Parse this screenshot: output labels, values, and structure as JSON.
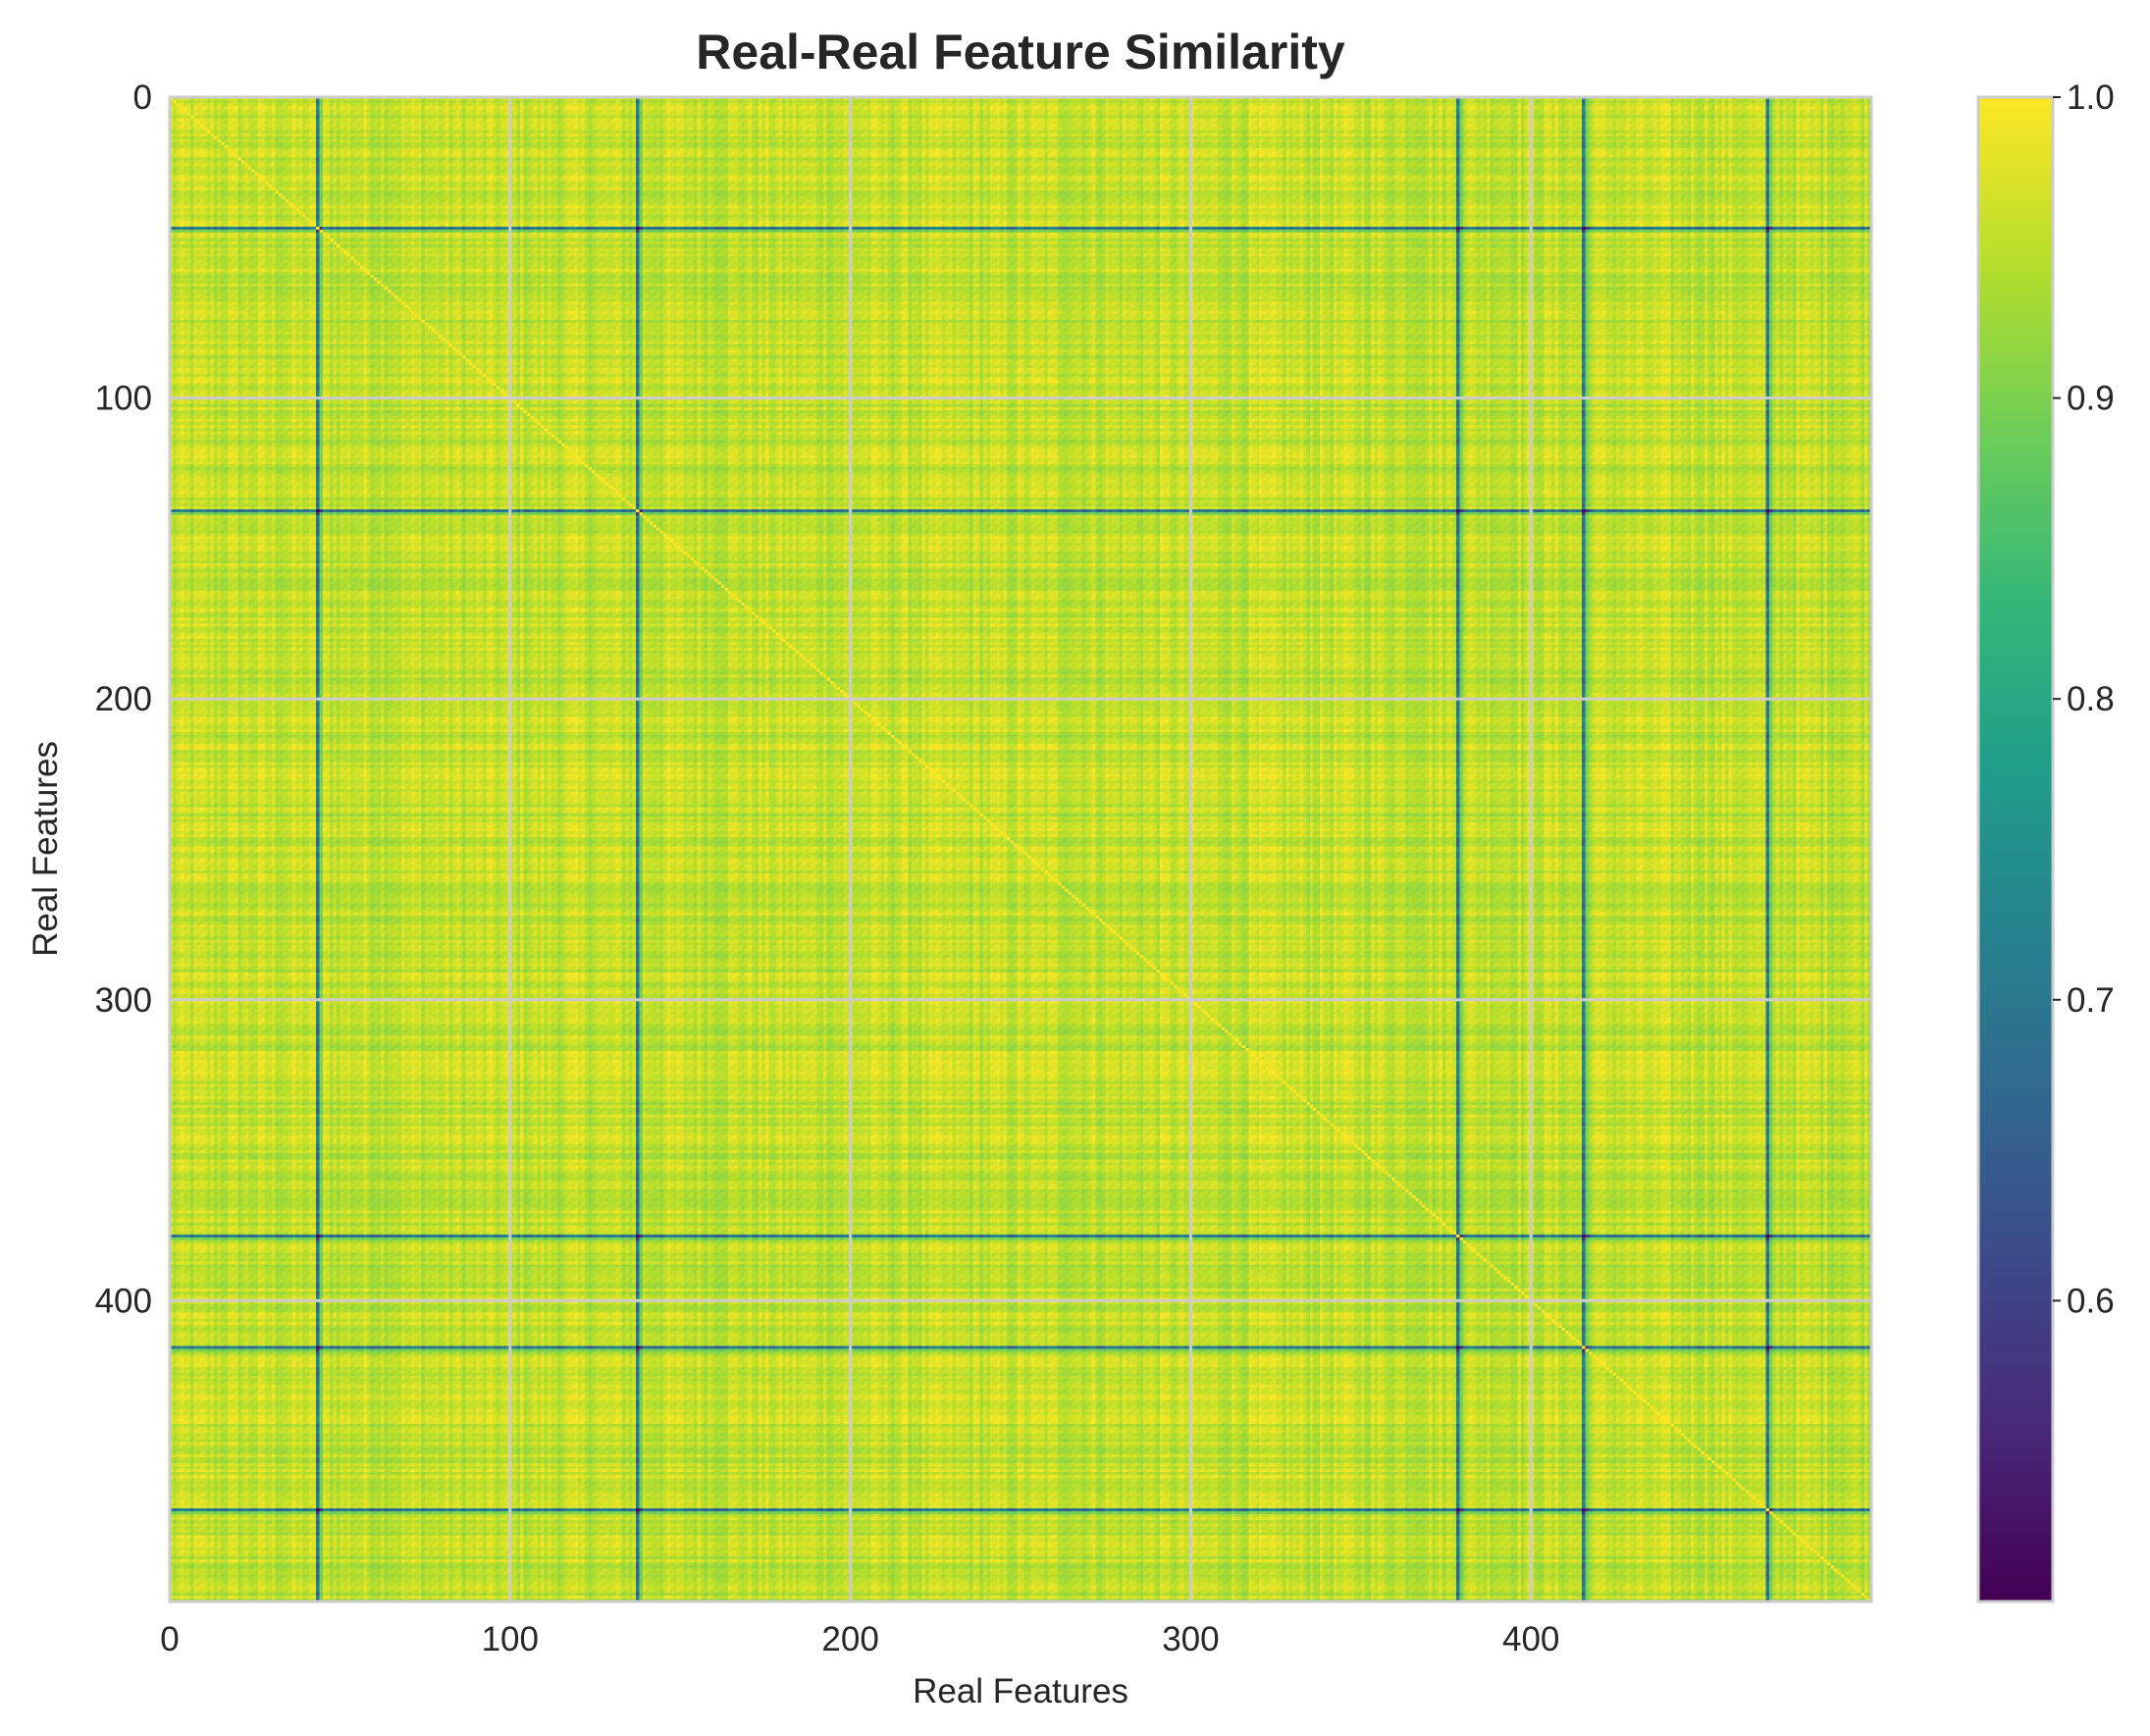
{
  "chart_data": {
    "type": "heatmap",
    "title": "Real-Real Feature Similarity",
    "xlabel": "Real Features",
    "ylabel": "Real Features",
    "n_rows": 500,
    "n_cols": 500,
    "xlim": [
      0,
      500
    ],
    "ylim": [
      500,
      0
    ],
    "xticks": [
      0,
      100,
      200,
      300,
      400
    ],
    "yticks": [
      0,
      100,
      200,
      300,
      400
    ],
    "colormap": "viridis",
    "value_range": [
      0.5,
      1.0
    ],
    "typical_value_range": [
      0.8,
      1.0
    ],
    "diagonal_value": 1.0,
    "low_similarity_features": [
      43,
      137,
      378,
      415,
      469
    ],
    "colorbar": {
      "ticks": [
        0.6,
        0.7,
        0.8,
        0.9,
        1.0
      ],
      "tick_labels": [
        "0.6",
        "0.7",
        "0.8",
        "0.9",
        "1.0"
      ],
      "vmin": 0.5,
      "vmax": 1.0
    },
    "grid": true
  },
  "colors": {
    "grid": "#cccccc",
    "text": "#262626",
    "viridis_stops": [
      "#440154",
      "#482878",
      "#3e4989",
      "#31688e",
      "#26828e",
      "#1f9e89",
      "#35b779",
      "#6ece58",
      "#b5de2b",
      "#fde725"
    ]
  }
}
